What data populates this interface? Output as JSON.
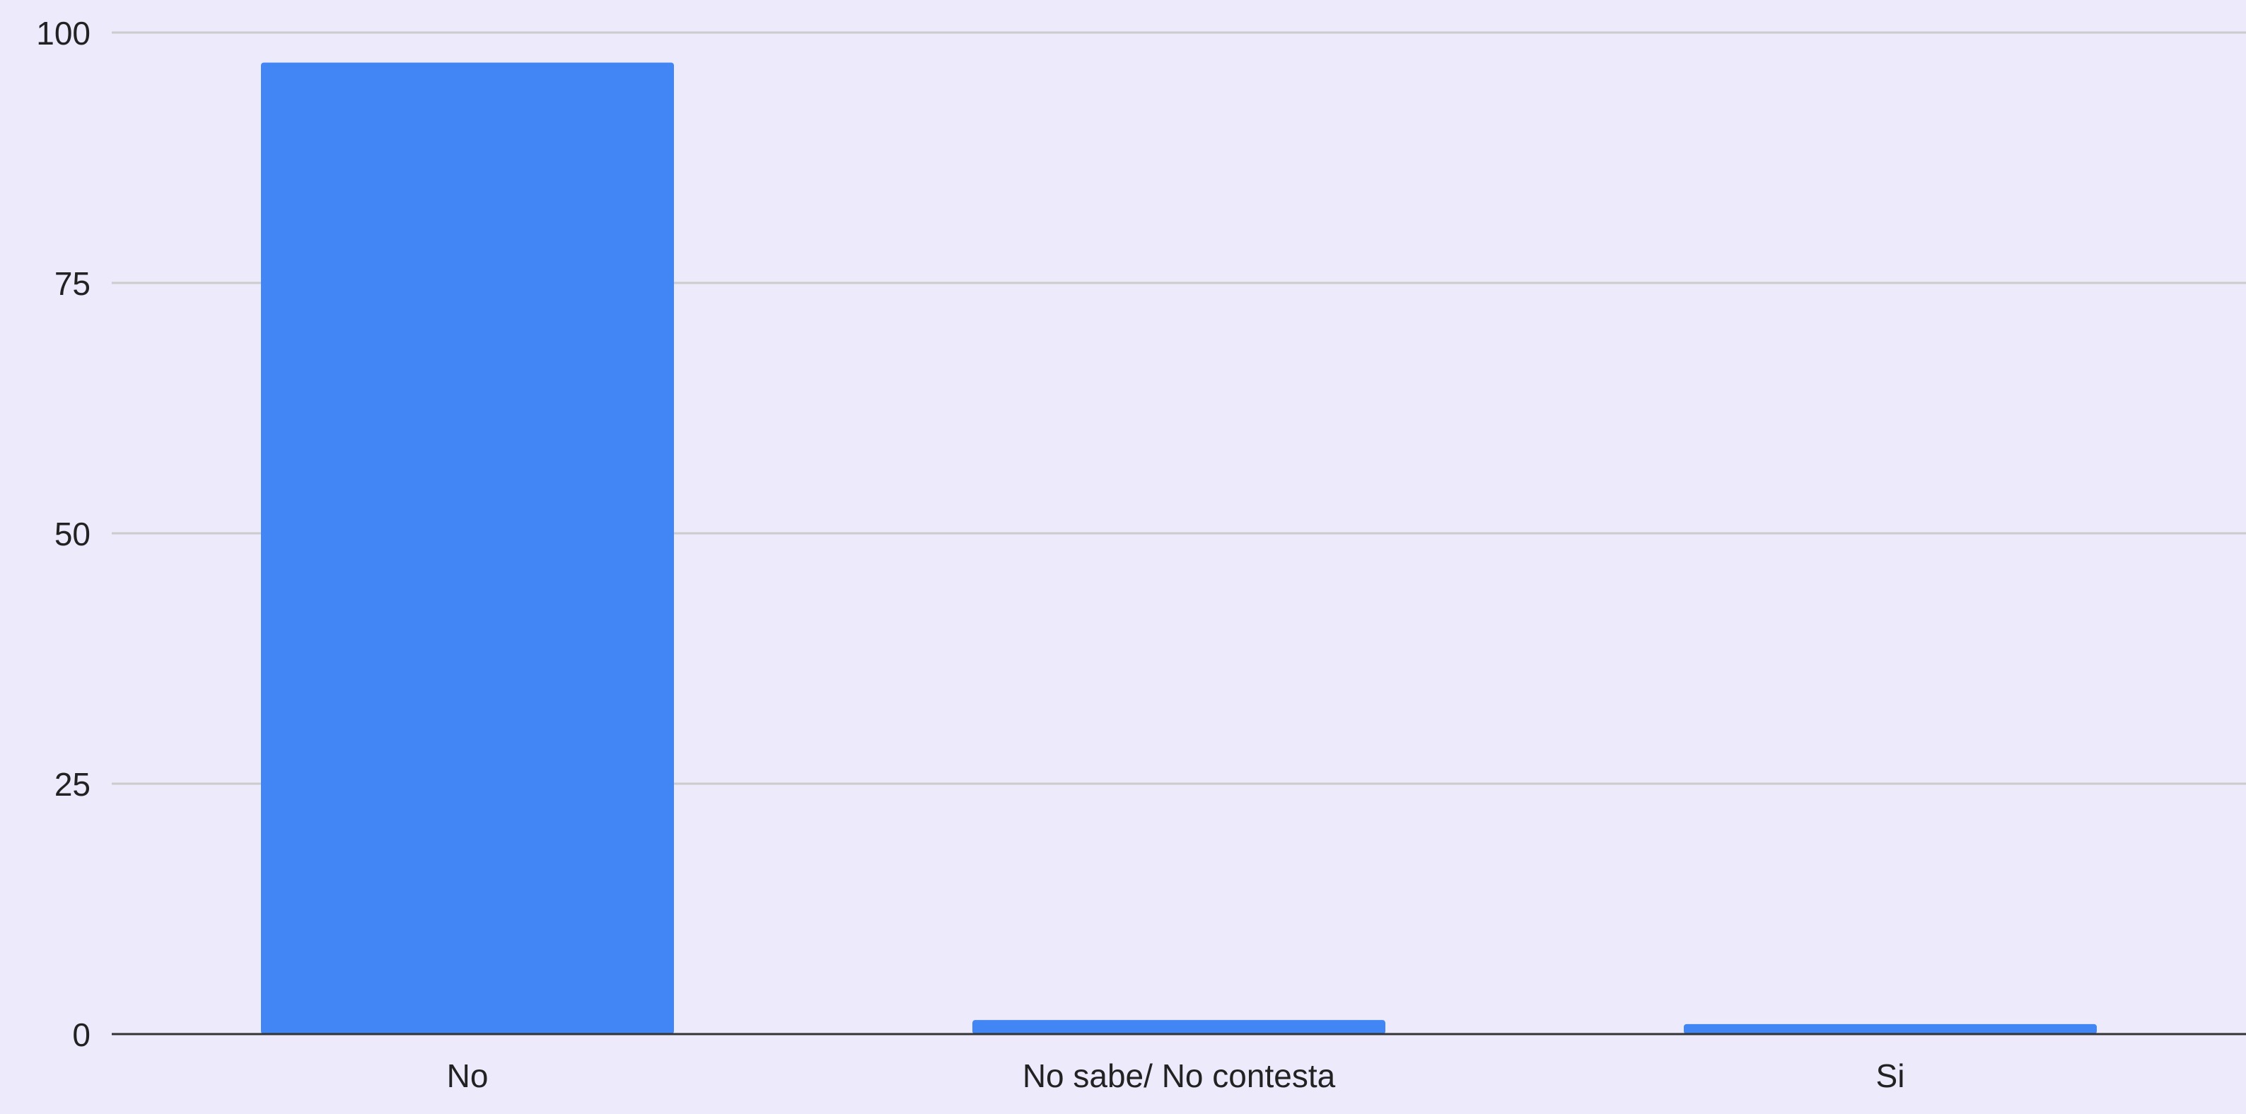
{
  "chart_data": {
    "type": "bar",
    "categories": [
      "No",
      "No sabe/ No contesta",
      "Si"
    ],
    "values": [
      97,
      1.4,
      1
    ],
    "ylim": [
      0,
      100
    ],
    "yticks": [
      "0",
      "25",
      "50",
      "75",
      "100"
    ],
    "grid": true,
    "legend": "none",
    "colors": {
      "bar": "#4285f4",
      "grid": "#cccccc",
      "axis": "#333333",
      "background": "#edeafc"
    }
  }
}
